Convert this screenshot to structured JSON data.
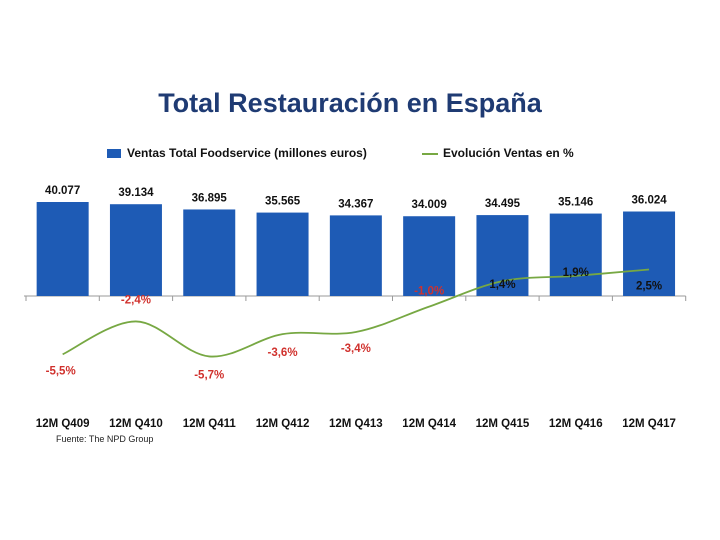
{
  "chart_data": {
    "type": "bar",
    "title": "Total Restauración en España",
    "categories": [
      "12M Q409",
      "12M Q410",
      "12M Q411",
      "12M Q412",
      "12M Q413",
      "12M Q414",
      "12M Q415",
      "12M Q416",
      "12M Q417"
    ],
    "series": [
      {
        "name": "Ventas Total Foodservice (millones euros)",
        "type": "bar",
        "color": "#1e5bb5",
        "values": [
          40077,
          39134,
          36895,
          35565,
          34367,
          34009,
          34495,
          35146,
          36024
        ],
        "labels": [
          "40.077",
          "39.134",
          "36.895",
          "35.565",
          "34.367",
          "34.009",
          "34.495",
          "35.146",
          "36.024"
        ]
      },
      {
        "name": "Evolución Ventas en %",
        "type": "line",
        "color": "#77a843",
        "values": [
          -5.5,
          -2.4,
          -5.7,
          -3.6,
          -3.4,
          -1.0,
          1.4,
          1.9,
          2.5
        ],
        "labels": [
          "-5,5%",
          "-2,4%",
          "-5,7%",
          "-3,6%",
          "-3,4%",
          "-1,0%",
          "1,4%",
          "1,9%",
          "2,5%"
        ]
      }
    ],
    "source": "Fuente: The NPD Group",
    "legend_position": "top",
    "grid": false
  }
}
